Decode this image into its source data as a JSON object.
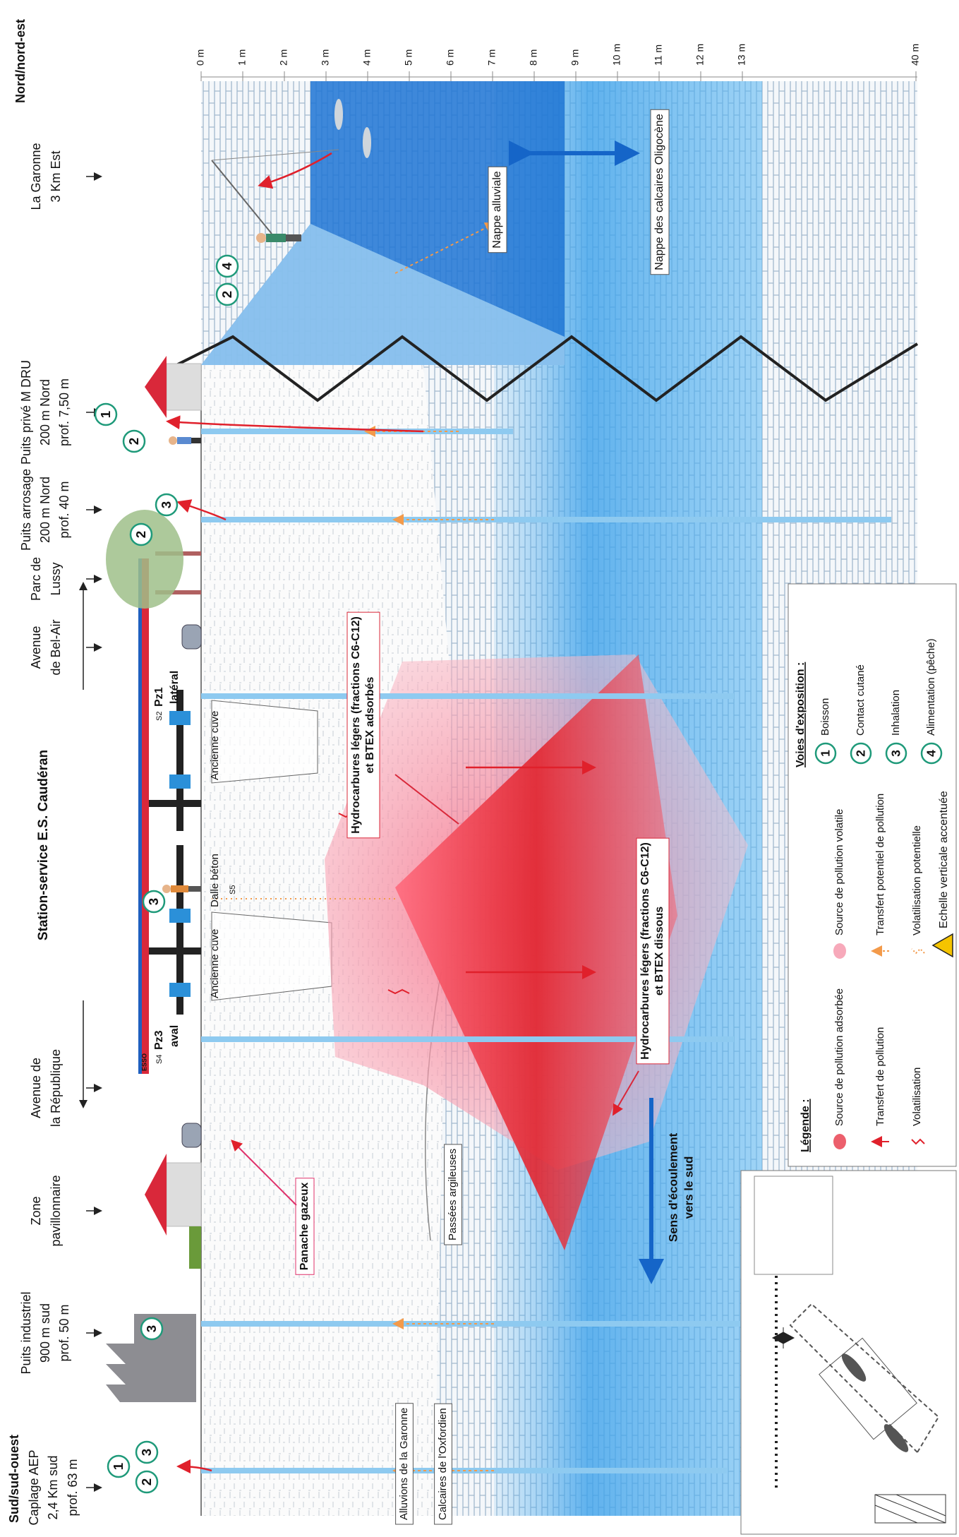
{
  "orientation": {
    "south": "Sud/sud-ouest",
    "north": "Nord/nord-est"
  },
  "station": "Station-service E.S. Caudéran",
  "locations": [
    {
      "lines": [
        "Caplage AEP",
        "2,4 Km sud",
        "prof. 63 m"
      ],
      "exposure": [
        1,
        2,
        3
      ]
    },
    {
      "lines": [
        "Puits industriel",
        "900 m sud",
        "prof. 50 m"
      ],
      "exposure": [
        3
      ]
    },
    {
      "lines": [
        "Zone",
        "pavillonnaire"
      ]
    },
    {
      "lines": [
        "Avenue de",
        "la République"
      ]
    },
    {
      "lines": [
        "Avenue",
        "de Bel-Air"
      ]
    },
    {
      "lines": [
        "Parc de",
        "Lussy"
      ]
    },
    {
      "lines": [
        "Puits arrosage",
        "200 m Nord",
        "prof. 40 m"
      ],
      "exposure": [
        2,
        3
      ]
    },
    {
      "lines": [
        "Puits privé M DRU",
        "200 m Nord",
        "prof. 7,50 m"
      ],
      "exposure": [
        1,
        2
      ]
    },
    {
      "lines": [
        "La Garonne",
        "3 Km Est"
      ]
    }
  ],
  "station_parts": {
    "brand": "ESSO",
    "tanks": [
      "Ancienne cuve",
      "Ancienne cuve"
    ],
    "slab": "Dalle béton",
    "slab_probe": "S5",
    "exposure": 3
  },
  "piezometers": [
    {
      "probe": "S4",
      "name": "Pz3",
      "role": "aval"
    },
    {
      "probe": "S2",
      "name": "Pz1",
      "role": "latéral"
    }
  ],
  "fisherman_exposure": [
    2,
    4
  ],
  "annotations": {
    "gas_plume": "Panache gazeux",
    "clay": "Passées argileuses",
    "alluvium": "Alluvions de la Garonne",
    "limestone": "Calcaires de l'Oxfordien",
    "adsorbed": [
      "Hydrocarbures légers (fractions C6-C12)",
      "et BTEX adsorbés"
    ],
    "dissolved": [
      "Hydrocarbures légers (fractions C6-C12)",
      "et BTEX dissous"
    ],
    "flow": [
      "Sens d'écoulement",
      "vers le sud"
    ],
    "alluvial_aquifer": "Nappe alluviale",
    "oligocene_aquifer": "Nappe des calcaires Oligocène"
  },
  "depth_scale": [
    "0 m",
    "1 m",
    "2 m",
    "3 m",
    "4 m",
    "5 m",
    "6 m",
    "7 m",
    "8 m",
    "9 m",
    "10 m",
    "11 m",
    "12 m",
    "13 m",
    "40 m"
  ],
  "legend": {
    "title": "Légende :",
    "items": [
      "Source de pollution adsorbée",
      "Source de pollution volatile",
      "Transfert de pollution",
      "Transfert potentiel de pollution",
      "Volatilisation",
      "Volatilisation potentielle"
    ],
    "note": "Echelle verticale accentuée"
  },
  "exposure_routes": {
    "title": "Voies d'exposition :",
    "items": [
      {
        "number": 1,
        "label": "Boisson"
      },
      {
        "number": 2,
        "label": "Contact cutané"
      },
      {
        "number": 3,
        "label": "Inhalation"
      },
      {
        "number": 4,
        "label": "Alimentation (pêche)"
      }
    ]
  }
}
